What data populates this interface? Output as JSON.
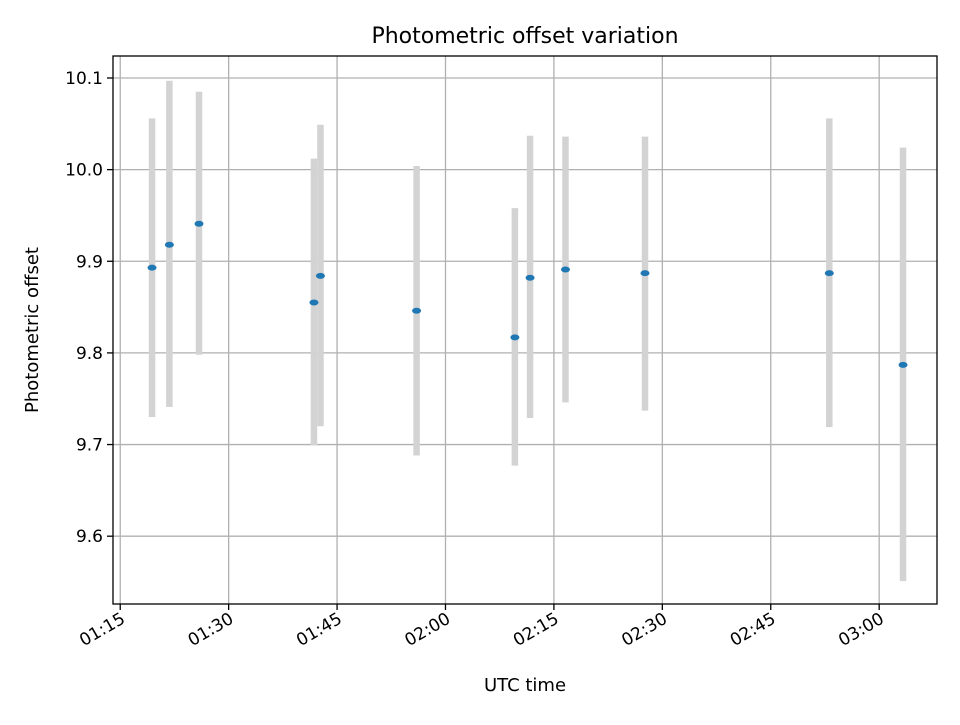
{
  "chart_data": {
    "type": "scatter",
    "subtype": "errorbar",
    "title": "Photometric offset variation",
    "xlabel": "UTC time",
    "ylabel": "Photometric offset",
    "xlim_minutes": [
      74,
      188
    ],
    "ylim": [
      9.526,
      10.124
    ],
    "grid": true,
    "x_ticks": [
      {
        "label": "01:15",
        "minutes": 75
      },
      {
        "label": "01:30",
        "minutes": 90
      },
      {
        "label": "01:45",
        "minutes": 105
      },
      {
        "label": "02:00",
        "minutes": 120
      },
      {
        "label": "02:15",
        "minutes": 135
      },
      {
        "label": "02:30",
        "minutes": 150
      },
      {
        "label": "02:45",
        "minutes": 165
      },
      {
        "label": "03:00",
        "minutes": 180
      }
    ],
    "y_ticks": [
      {
        "label": "9.6",
        "value": 9.6
      },
      {
        "label": "9.7",
        "value": 9.7
      },
      {
        "label": "9.8",
        "value": 9.8
      },
      {
        "label": "9.9",
        "value": 9.9
      },
      {
        "label": "10.0",
        "value": 10.0
      },
      {
        "label": "10.1",
        "value": 10.1
      }
    ],
    "series": [
      {
        "name": "offset",
        "marker_color": "#1f77b4",
        "errorbar_color": "#d3d3d3",
        "points": [
          {
            "time": "01:19:30",
            "x_minutes": 79.4,
            "y": 9.893,
            "yerr_low": 9.73,
            "yerr_high": 10.056
          },
          {
            "time": "01:21:50",
            "x_minutes": 81.8,
            "y": 9.918,
            "yerr_low": 9.741,
            "yerr_high": 10.097
          },
          {
            "time": "01:26:00",
            "x_minutes": 85.9,
            "y": 9.941,
            "yerr_low": 9.798,
            "yerr_high": 10.085
          },
          {
            "time": "01:41:50",
            "x_minutes": 101.8,
            "y": 9.855,
            "yerr_low": 9.699,
            "yerr_high": 10.012
          },
          {
            "time": "01:42:40",
            "x_minutes": 102.7,
            "y": 9.884,
            "yerr_low": 9.72,
            "yerr_high": 10.049
          },
          {
            "time": "01:56:00",
            "x_minutes": 116.0,
            "y": 9.846,
            "yerr_low": 9.688,
            "yerr_high": 10.004
          },
          {
            "time": "02:09:40",
            "x_minutes": 129.6,
            "y": 9.817,
            "yerr_low": 9.677,
            "yerr_high": 9.958
          },
          {
            "time": "02:11:45",
            "x_minutes": 131.7,
            "y": 9.882,
            "yerr_low": 9.729,
            "yerr_high": 10.037
          },
          {
            "time": "02:16:40",
            "x_minutes": 136.6,
            "y": 9.891,
            "yerr_low": 9.746,
            "yerr_high": 10.036
          },
          {
            "time": "02:27:40",
            "x_minutes": 147.6,
            "y": 9.887,
            "yerr_low": 9.737,
            "yerr_high": 10.036
          },
          {
            "time": "02:53:10",
            "x_minutes": 173.1,
            "y": 9.887,
            "yerr_low": 9.719,
            "yerr_high": 10.056
          },
          {
            "time": "03:03:20",
            "x_minutes": 183.3,
            "y": 9.787,
            "yerr_low": 9.551,
            "yerr_high": 10.024
          }
        ]
      }
    ]
  }
}
